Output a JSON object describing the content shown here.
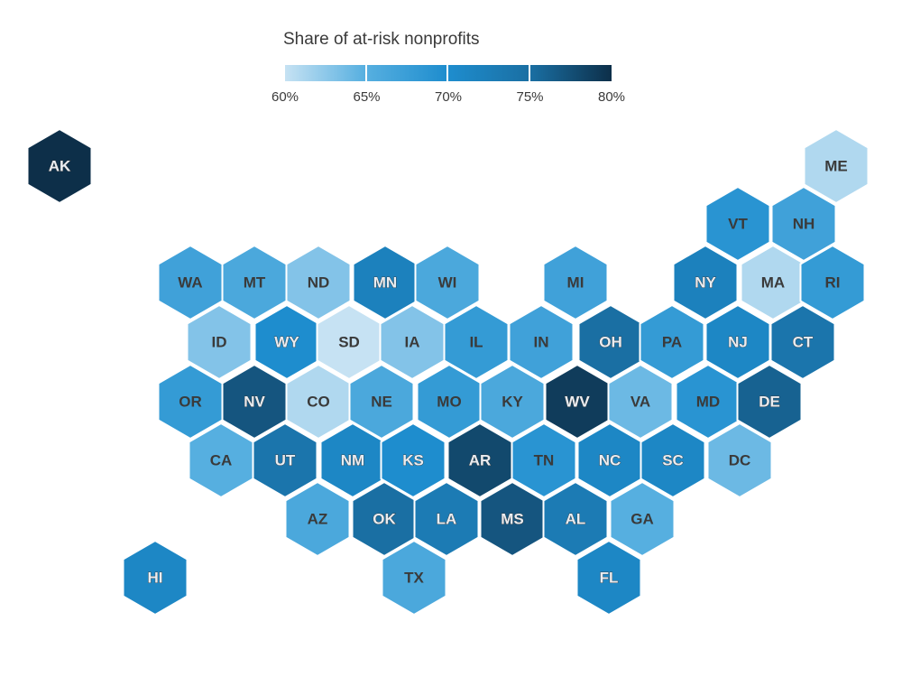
{
  "legend": {
    "title": "Share of at-risk nonprofits",
    "ticks": [
      "60%",
      "65%",
      "70%",
      "75%",
      "80%"
    ],
    "colors": [
      "#c6e2f3",
      "#56afe0",
      "#1e8dce",
      "#1a6fa3",
      "#0d2f49"
    ]
  },
  "states": [
    {
      "abbr": "AK",
      "value": 80
    },
    {
      "abbr": "ME",
      "value": 61
    },
    {
      "abbr": "VT",
      "value": 69
    },
    {
      "abbr": "NH",
      "value": 67
    },
    {
      "abbr": "WA",
      "value": 67
    },
    {
      "abbr": "MT",
      "value": 66
    },
    {
      "abbr": "ND",
      "value": 63
    },
    {
      "abbr": "MN",
      "value": 72
    },
    {
      "abbr": "WI",
      "value": 66
    },
    {
      "abbr": "MI",
      "value": 67
    },
    {
      "abbr": "NY",
      "value": 72
    },
    {
      "abbr": "MA",
      "value": 61
    },
    {
      "abbr": "RI",
      "value": 68
    },
    {
      "abbr": "ID",
      "value": 63
    },
    {
      "abbr": "WY",
      "value": 70
    },
    {
      "abbr": "SD",
      "value": 60
    },
    {
      "abbr": "IA",
      "value": 63
    },
    {
      "abbr": "IL",
      "value": 68
    },
    {
      "abbr": "IN",
      "value": 67
    },
    {
      "abbr": "OH",
      "value": 75
    },
    {
      "abbr": "PA",
      "value": 68
    },
    {
      "abbr": "NJ",
      "value": 71
    },
    {
      "abbr": "CT",
      "value": 74
    },
    {
      "abbr": "OR",
      "value": 68
    },
    {
      "abbr": "NV",
      "value": 77
    },
    {
      "abbr": "CO",
      "value": 61
    },
    {
      "abbr": "NE",
      "value": 66
    },
    {
      "abbr": "MO",
      "value": 68
    },
    {
      "abbr": "KY",
      "value": 66
    },
    {
      "abbr": "WV",
      "value": 79
    },
    {
      "abbr": "VA",
      "value": 64
    },
    {
      "abbr": "MD",
      "value": 69
    },
    {
      "abbr": "DE",
      "value": 76
    },
    {
      "abbr": "CA",
      "value": 65
    },
    {
      "abbr": "UT",
      "value": 74
    },
    {
      "abbr": "NM",
      "value": 71
    },
    {
      "abbr": "KS",
      "value": 70
    },
    {
      "abbr": "AR",
      "value": 78
    },
    {
      "abbr": "TN",
      "value": 69
    },
    {
      "abbr": "NC",
      "value": 71
    },
    {
      "abbr": "SC",
      "value": 71
    },
    {
      "abbr": "DC",
      "value": 64
    },
    {
      "abbr": "AZ",
      "value": 66
    },
    {
      "abbr": "OK",
      "value": 75
    },
    {
      "abbr": "LA",
      "value": 73
    },
    {
      "abbr": "MS",
      "value": 77
    },
    {
      "abbr": "AL",
      "value": 73
    },
    {
      "abbr": "GA",
      "value": 65
    },
    {
      "abbr": "HI",
      "value": 71
    },
    {
      "abbr": "TX",
      "value": 66
    },
    {
      "abbr": "FL",
      "value": 71
    }
  ]
}
